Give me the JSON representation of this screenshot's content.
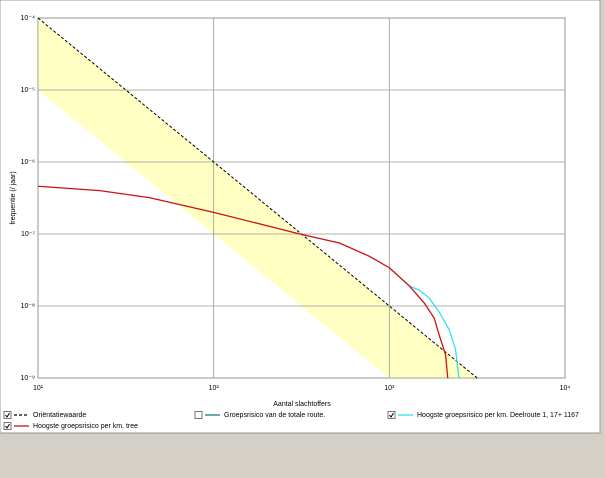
{
  "chart_data": {
    "type": "line",
    "log_x": true,
    "log_y": true,
    "grid": true,
    "xlabel": "Aantal slachtoffers",
    "ylabel": "frequentie (/ jaar)",
    "xlim": [
      10,
      10000
    ],
    "ylim": [
      1e-09,
      0.0001
    ],
    "xticks": [
      {
        "value": 10,
        "label": "10¹"
      },
      {
        "value": 100,
        "label": "10²"
      },
      {
        "value": 1000,
        "label": "10³"
      },
      {
        "value": 10000,
        "label": "10⁴"
      }
    ],
    "yticks": [
      {
        "value": 1e-09,
        "label": "10⁻⁹"
      },
      {
        "value": 1e-08,
        "label": "10⁻⁸"
      },
      {
        "value": 1e-07,
        "label": "10⁻⁷"
      },
      {
        "value": 1e-06,
        "label": "10⁻⁶"
      },
      {
        "value": 1e-05,
        "label": "10⁻⁵"
      },
      {
        "value": 0.0001,
        "label": "10⁻⁴"
      }
    ],
    "band": {
      "color": "#ffffc4",
      "x": [
        10,
        1000,
        3162
      ],
      "lower": [
        1e-05,
        1e-09,
        1e-09
      ],
      "upper": [
        0.0001,
        1e-08,
        1e-09
      ]
    },
    "series": [
      {
        "name": "Oriëntatiewaarde",
        "color": "#000000",
        "dash": true,
        "checked": true,
        "x": [
          10,
          3162
        ],
        "values": [
          0.0001,
          1e-09
        ]
      },
      {
        "name": "Groepsrisico van de totale route.",
        "color": "#1a7a8a",
        "dash": false,
        "checked": false,
        "x": [],
        "values": []
      },
      {
        "name": "Hoogste groepsrisico per km. Deelroute 1, 17+ 1167",
        "color": "#33e0f0",
        "dash": false,
        "checked": true,
        "x": [
          1000,
          1300,
          1480,
          1680,
          1920,
          2190,
          2380,
          2490
        ],
        "values": [
          3.4e-08,
          1.9e-08,
          1.66e-08,
          1.3e-08,
          8.3e-09,
          4.7e-09,
          2.5e-09,
          1e-09
        ]
      },
      {
        "name": "Hoogste groepsrisico per km. tree",
        "color": "#cc1010",
        "dash": false,
        "checked": true,
        "x": [
          10,
          22.5,
          43,
          100,
          309,
          520,
          770,
          1000,
          1300,
          1580,
          1800,
          1920,
          2090,
          2150
        ],
        "values": [
          4.6e-07,
          4e-07,
          3.2e-07,
          2e-07,
          1e-07,
          7.5e-08,
          4.9e-08,
          3.4e-08,
          1.9e-08,
          1.1e-08,
          6.8e-09,
          4e-09,
          2.1e-09,
          1e-09
        ]
      }
    ]
  }
}
